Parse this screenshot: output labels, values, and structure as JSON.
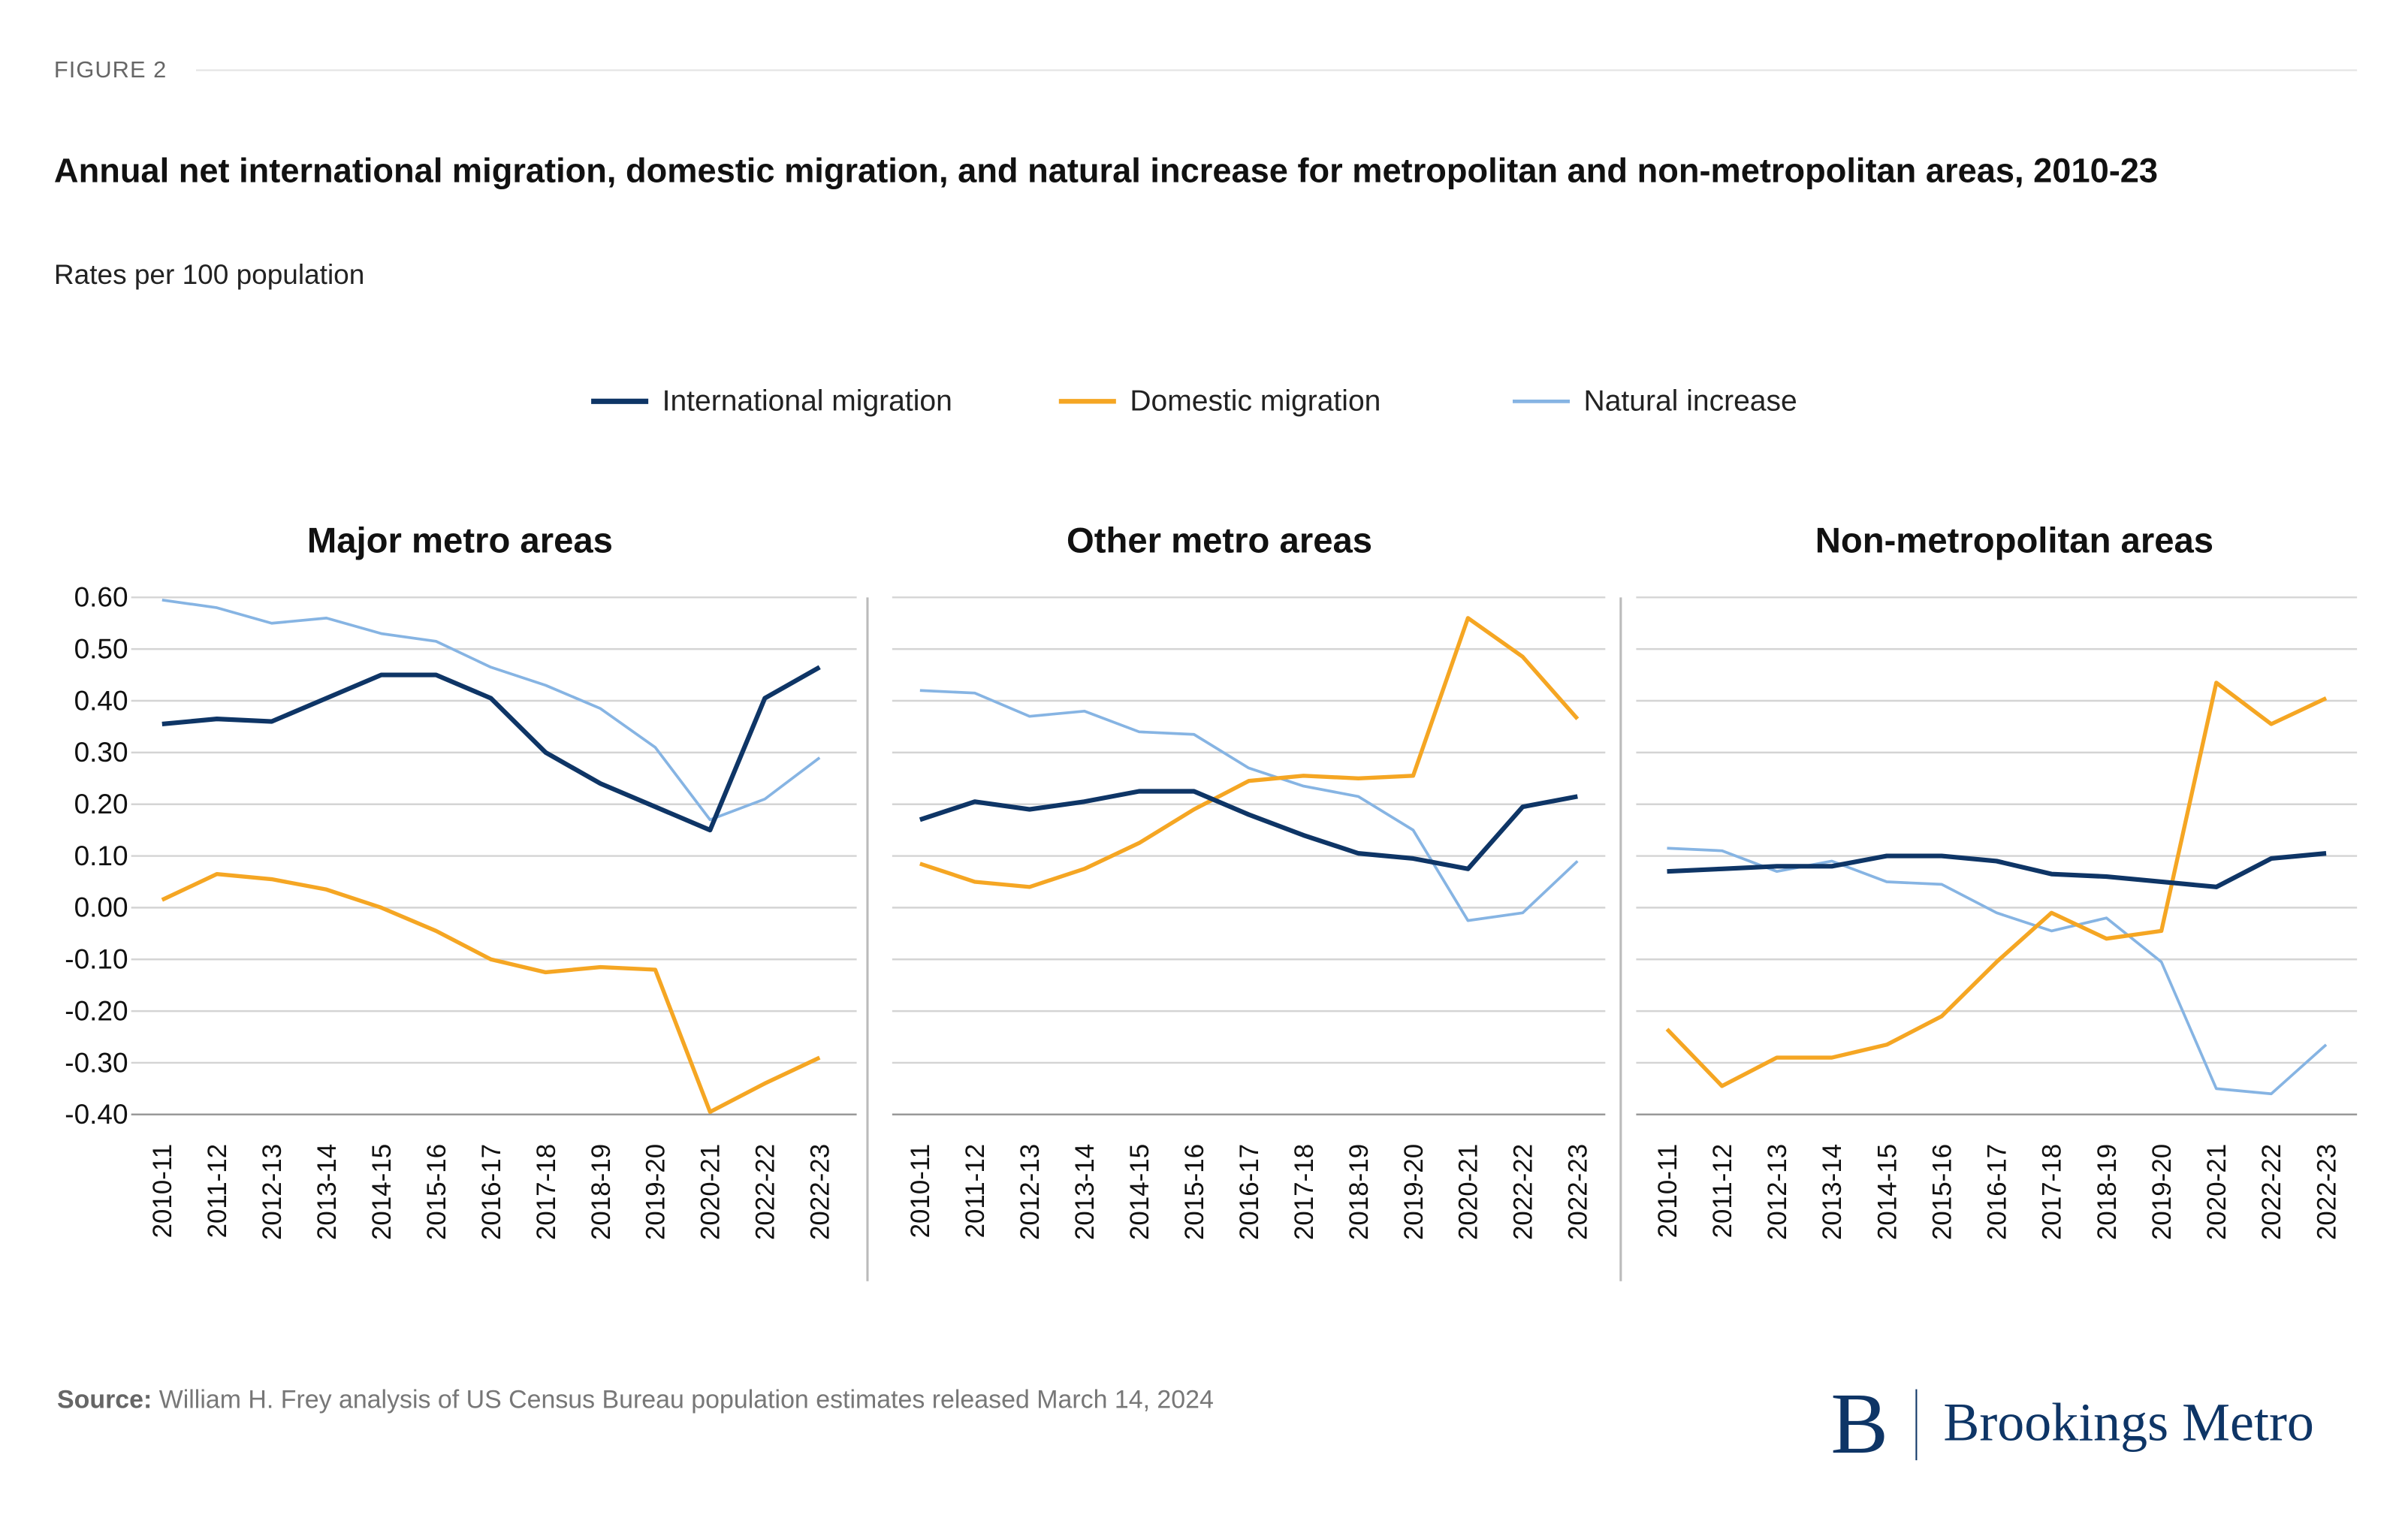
{
  "figure_label": "FIGURE 2",
  "title": "Annual net international migration, domestic migration, and natural increase for metropolitan and non-metropolitan areas, 2010-23",
  "subtitle": "Rates per 100 population",
  "source_label": "Source:",
  "source_text": "William H. Frey analysis of US Census Bureau population estimates released March 14, 2024",
  "logo": {
    "mark": "B",
    "text": "Brookings Metro"
  },
  "chart_data": [
    {
      "type": "line",
      "title": "Major metro areas",
      "categories": [
        "2010-11",
        "2011-12",
        "2012-13",
        "2013-14",
        "2014-15",
        "2015-16",
        "2016-17",
        "2017-18",
        "2018-19",
        "2019-20",
        "2020-21",
        "2022-22",
        "2022-23"
      ],
      "series": [
        {
          "name": "International migration",
          "color": "#0e3566",
          "values": [
            0.355,
            0.365,
            0.36,
            0.405,
            0.45,
            0.45,
            0.405,
            0.3,
            0.24,
            0.195,
            0.15,
            0.405,
            0.465
          ]
        },
        {
          "name": "Domestic migration",
          "color": "#f5a623",
          "values": [
            0.015,
            0.065,
            0.055,
            0.035,
            0.0,
            -0.045,
            -0.1,
            -0.125,
            -0.115,
            -0.12,
            -0.395,
            -0.34,
            -0.29
          ]
        },
        {
          "name": "Natural increase",
          "color": "#86b4e3",
          "values": [
            0.595,
            0.58,
            0.55,
            0.56,
            0.53,
            0.515,
            0.465,
            0.43,
            0.385,
            0.31,
            0.17,
            0.21,
            0.29
          ]
        }
      ],
      "ylim": [
        -0.4,
        0.6
      ],
      "yticks": [
        {
          "value": 0.6,
          "label": "0.60"
        },
        {
          "value": 0.5,
          "label": "0.50"
        },
        {
          "value": 0.4,
          "label": "0.40"
        },
        {
          "value": 0.3,
          "label": "0.30"
        },
        {
          "value": 0.2,
          "label": "0.20"
        },
        {
          "value": 0.1,
          "label": "0.10"
        },
        {
          "value": 0,
          "label": "0.00"
        },
        {
          "value": -0.1,
          "label": "-0.10"
        },
        {
          "value": -0.2,
          "label": "-0.20"
        },
        {
          "value": -0.3,
          "label": "-0.30"
        },
        {
          "value": -0.4,
          "label": "-0.40"
        }
      ],
      "grid": true
    },
    {
      "type": "line",
      "title": "Other metro areas",
      "categories": [
        "2010-11",
        "2011-12",
        "2012-13",
        "2013-14",
        "2014-15",
        "2015-16",
        "2016-17",
        "2017-18",
        "2018-19",
        "2019-20",
        "2020-21",
        "2022-22",
        "2022-23"
      ],
      "series": [
        {
          "color": "#0e3566",
          "values": [
            0.17,
            0.205,
            0.19,
            0.205,
            0.225,
            0.225,
            0.18,
            0.14,
            0.105,
            0.095,
            0.075,
            0.195,
            0.215
          ]
        },
        {
          "color": "#f5a623",
          "values": [
            0.085,
            0.05,
            0.04,
            0.075,
            0.125,
            0.19,
            0.245,
            0.255,
            0.25,
            0.255,
            0.56,
            0.485,
            0.365
          ]
        },
        {
          "color": "#86b4e3",
          "values": [
            0.42,
            0.415,
            0.37,
            0.38,
            0.34,
            0.335,
            0.27,
            0.235,
            0.215,
            0.15,
            -0.025,
            -0.01,
            0.09
          ]
        }
      ],
      "ylim": [
        -0.4,
        0.6
      ],
      "yticks": [
        0.6,
        0.5,
        0.4,
        0.3,
        0.2,
        0.1,
        0,
        -0.1,
        -0.2,
        -0.3,
        -0.4
      ],
      "grid": true
    },
    {
      "type": "line",
      "title": "Non-metropolitan areas",
      "categories": [
        "2010-11",
        "2011-12",
        "2012-13",
        "2013-14",
        "2014-15",
        "2015-16",
        "2016-17",
        "2017-18",
        "2018-19",
        "2019-20",
        "2020-21",
        "2022-22",
        "2022-23"
      ],
      "series": [
        {
          "color": "#0e3566",
          "values": [
            0.07,
            0.075,
            0.08,
            0.08,
            0.1,
            0.1,
            0.09,
            0.065,
            0.06,
            0.05,
            0.04,
            0.095,
            0.105
          ]
        },
        {
          "color": "#f5a623",
          "values": [
            -0.235,
            -0.345,
            -0.29,
            -0.29,
            -0.265,
            -0.21,
            -0.105,
            -0.01,
            -0.06,
            -0.045,
            0.435,
            0.355,
            0.405
          ]
        },
        {
          "color": "#86b4e3",
          "values": [
            0.115,
            0.11,
            0.07,
            0.09,
            0.05,
            0.045,
            -0.01,
            -0.045,
            -0.02,
            -0.105,
            -0.35,
            -0.36,
            -0.265
          ]
        }
      ],
      "ylim": [
        -0.4,
        0.6
      ],
      "yticks": [
        0.6,
        0.5,
        0.4,
        0.3,
        0.2,
        0.1,
        0,
        -0.1,
        -0.2,
        -0.3,
        -0.4
      ],
      "grid": true
    }
  ]
}
